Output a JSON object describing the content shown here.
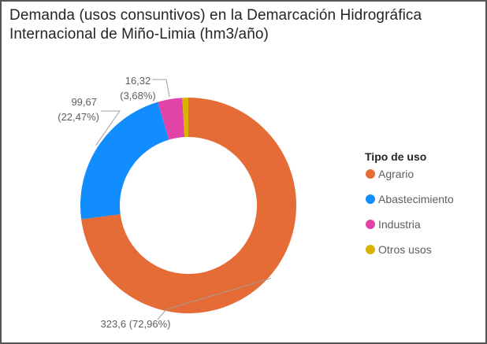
{
  "chart_data": {
    "type": "pie",
    "variant": "donut",
    "title": "Demanda (usos consuntivos) en la Demarcación Hidrográfica Internacional de Miño-Limia (hm3/año)",
    "title_lines": [
      "Demanda (usos consuntivos) en la Demarcación Hidrográfica",
      "Internacional de Miño-Limia (hm3/año)"
    ],
    "legend_title": "Tipo de uso",
    "legend_position": "right",
    "categories": [
      "Agrario",
      "Abastecimiento",
      "Industria",
      "Otros usos"
    ],
    "values": [
      323.6,
      99.67,
      16.32,
      3.95
    ],
    "colors": [
      "#E66C37",
      "#118DFF",
      "#E044A7",
      "#D9B300"
    ],
    "data_labels": [
      {
        "category": "Agrario",
        "value": "323,6",
        "percent": "(72,96%)"
      },
      {
        "category": "Abastecimiento",
        "value": "99,67",
        "percent": "(22,47%)"
      },
      {
        "category": "Industria",
        "value": "16,32",
        "percent": "(3,68%)"
      }
    ]
  }
}
